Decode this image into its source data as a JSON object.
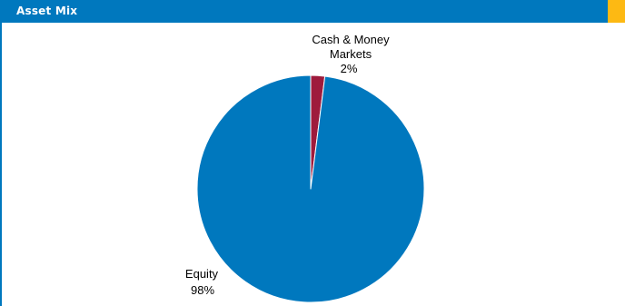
{
  "panel": {
    "title": "Asset Mix"
  },
  "colors": {
    "header": "#0078be",
    "accent": "#fdb913",
    "equity": "#0078be",
    "cash": "#9e1b3c"
  },
  "chart_data": {
    "type": "pie",
    "title": "",
    "slices": [
      {
        "label_lines": [
          "Cash & Money",
          "Markets"
        ],
        "percent_label": "2%",
        "value": 2,
        "color": "#9e1b3c"
      },
      {
        "label_lines": [
          "Equity"
        ],
        "percent_label": "98%",
        "value": 98,
        "color": "#0078be"
      }
    ],
    "start": "12 o'clock",
    "direction": "clockwise",
    "legend": "none",
    "labels": "outside slices"
  }
}
